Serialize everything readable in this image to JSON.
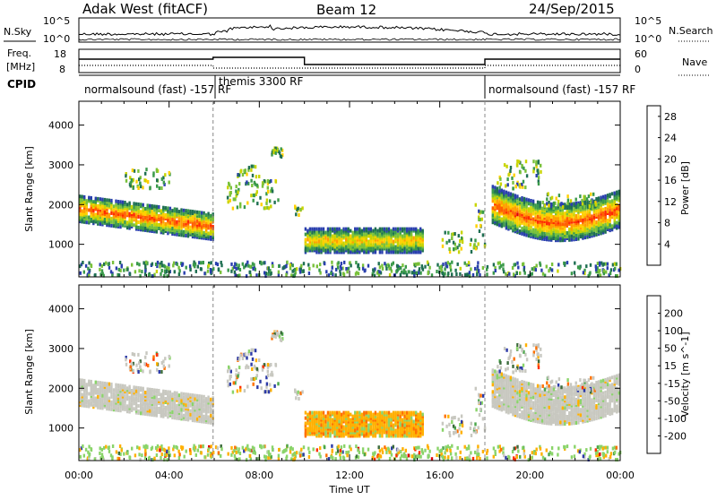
{
  "header": {
    "radar_title": "Adak West (fitACF)",
    "beam_label": "Beam 12",
    "date_label": "24/Sep/2015"
  },
  "top_panels": {
    "nsky_label": "N.Sky",
    "nsky_ticks": [
      "10^5",
      "10^0"
    ],
    "nsearch_label": "N.Search",
    "nsearch_ticks": [
      "10^5",
      "10^0"
    ],
    "freq_label": "Freq.",
    "freq_unit": "[MHz]",
    "freq_ticks": [
      "18",
      "8"
    ],
    "nave_label": "Nave",
    "nave_ticks": [
      "60",
      "0"
    ],
    "cpid_label": "CPID",
    "cpid_segments": [
      {
        "label": "normalsound (fast) -157 RF"
      },
      {
        "label": "themis 3300 RF"
      },
      {
        "label": "normalsound (fast) -157 RF"
      }
    ]
  },
  "chart_data": [
    {
      "type": "heatmap",
      "panel": "power",
      "ylabel": "Slant Range [km]",
      "xlabel": "Time UT",
      "x_ticks": [
        "00:00",
        "04:00",
        "08:00",
        "12:00",
        "16:00",
        "20:00",
        "00:00"
      ],
      "x_range_hours": [
        0,
        24
      ],
      "y_ticks": [
        1000,
        2000,
        3000,
        4000
      ],
      "ylim": [
        180,
        4600
      ],
      "colorbar": {
        "label": "Power [dB]",
        "ticks": [
          4,
          8,
          12,
          16,
          20,
          24,
          28
        ],
        "range": [
          0,
          30
        ],
        "colors": [
          "#0000ff",
          "#2a3fae",
          "#1f6f52",
          "#3a9a4a",
          "#79c13a",
          "#c8d400",
          "#ffd000",
          "#ffa000",
          "#ff6000",
          "#ff2a00",
          "#e00000"
        ]
      },
      "vlines_hours": [
        5.95,
        18.0
      ],
      "echo_bands": [
        {
          "t_start": 0.0,
          "t_end": 5.9,
          "range_km": [
            1500,
            2150
          ],
          "peak_db": 26,
          "trend": "descending"
        },
        {
          "t_start": 10.0,
          "t_end": 15.2,
          "range_km": [
            800,
            1400
          ],
          "peak_db": 20,
          "trend": "flat"
        },
        {
          "t_start": 18.3,
          "t_end": 24.0,
          "range_km": [
            1300,
            2200
          ],
          "peak_db": 26,
          "trend": "ascending"
        }
      ]
    },
    {
      "type": "heatmap",
      "panel": "velocity",
      "ylabel": "Slant Range [km]",
      "xlabel": "Time UT",
      "x_ticks": [
        "00:00",
        "04:00",
        "08:00",
        "12:00",
        "16:00",
        "20:00",
        "00:00"
      ],
      "x_range_hours": [
        0,
        24
      ],
      "y_ticks": [
        1000,
        2000,
        3000,
        4000
      ],
      "ylim": [
        180,
        4600
      ],
      "colorbar": {
        "label": "Velocity [m s^-1]",
        "ticks": [
          "200",
          "100",
          "50",
          "15",
          "-15",
          "-50",
          "-100",
          "-200"
        ],
        "colors": [
          "#2c3aa8",
          "#3a6a3a",
          "#4aa64a",
          "#8ad46a",
          "#c8c8c0",
          "#ffb000",
          "#ff7000",
          "#ff3000",
          "#e00000"
        ]
      },
      "vlines_hours": [
        5.95,
        18.0
      ]
    }
  ]
}
